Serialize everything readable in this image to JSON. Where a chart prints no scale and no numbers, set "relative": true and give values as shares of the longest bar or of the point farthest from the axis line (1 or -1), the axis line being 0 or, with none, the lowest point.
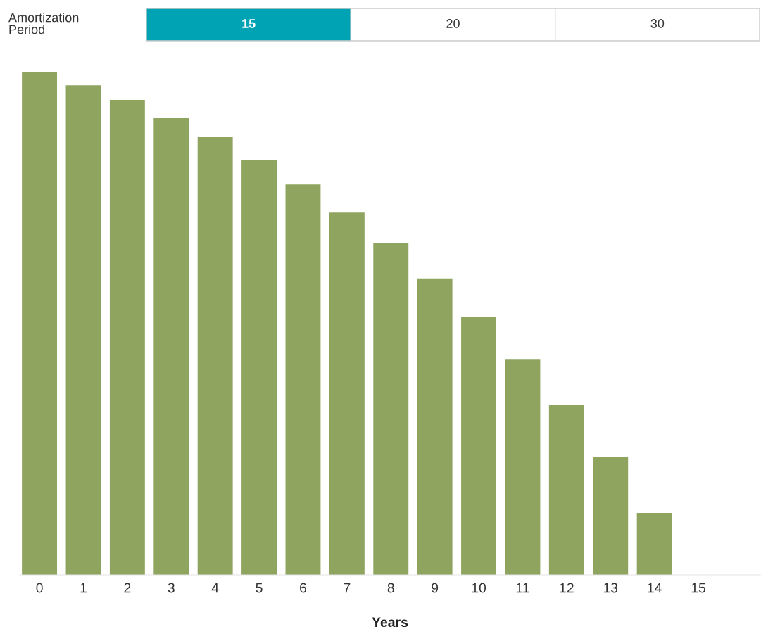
{
  "chart_data": {
    "type": "bar",
    "relative": true,
    "xlabel": "Years",
    "categories": [
      "0",
      "1",
      "2",
      "3",
      "4",
      "5",
      "6",
      "7",
      "8",
      "9",
      "10",
      "11",
      "12",
      "13",
      "14",
      "15"
    ],
    "values": [
      1,
      0.973,
      0.944,
      0.909,
      0.87,
      0.825,
      0.776,
      0.72,
      0.659,
      0.589,
      0.513,
      0.429,
      0.337,
      0.235,
      0.123,
      0
    ],
    "color": "#8fa45f",
    "grid": false,
    "legend": false,
    "annotations": [
      "Amortization Period",
      "15",
      "20",
      "30"
    ]
  }
}
